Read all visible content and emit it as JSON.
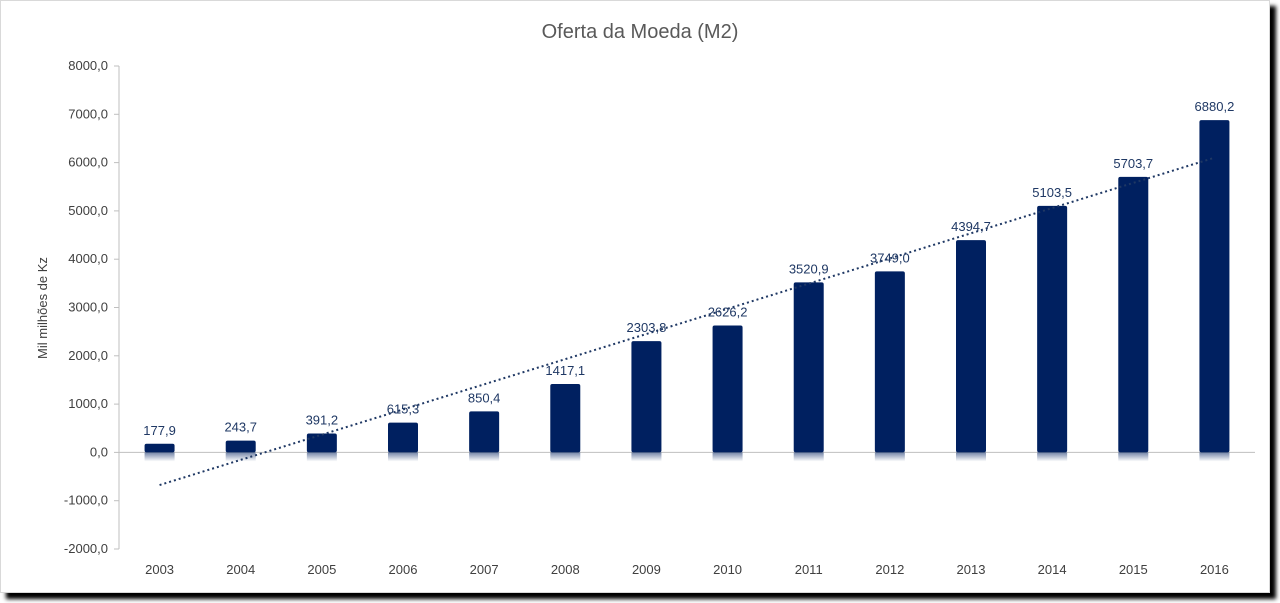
{
  "chart_data": {
    "type": "bar",
    "title": "Oferta da Moeda (M2)",
    "ylabel": "Mil milhões de Kz",
    "xlabel": "",
    "categories": [
      "2003",
      "2004",
      "2005",
      "2006",
      "2007",
      "2008",
      "2009",
      "2010",
      "2011",
      "2012",
      "2013",
      "2014",
      "2015",
      "2016"
    ],
    "values": [
      177.9,
      243.7,
      391.2,
      615.3,
      850.4,
      1417.1,
      2303.8,
      2626.2,
      3520.9,
      3749.0,
      4394.7,
      5103.5,
      5703.7,
      6880.2
    ],
    "value_labels": [
      "177,9",
      "243,7",
      "391,2",
      "615,3",
      "850,4",
      "1417,1",
      "2303,8",
      "2626,2",
      "3520,9",
      "3749,0",
      "4394,7",
      "5103,5",
      "5703,7",
      "6880,2"
    ],
    "ylim": [
      -2000,
      8000
    ],
    "yticks": [
      -2000,
      -1000,
      0,
      1000,
      2000,
      3000,
      4000,
      5000,
      6000,
      7000,
      8000
    ],
    "ytick_labels": [
      "-2000,0",
      "-1000,0",
      "0,0",
      "1000,0",
      "2000,0",
      "3000,0",
      "4000,0",
      "5000,0",
      "6000,0",
      "7000,0",
      "8000,0"
    ],
    "trendline": {
      "type": "linear",
      "style": "dotted"
    },
    "grid": false,
    "legend": "none",
    "colors": {
      "bar": "#002060",
      "trend": "#1f3864",
      "axis": "#bfbfbf"
    }
  }
}
